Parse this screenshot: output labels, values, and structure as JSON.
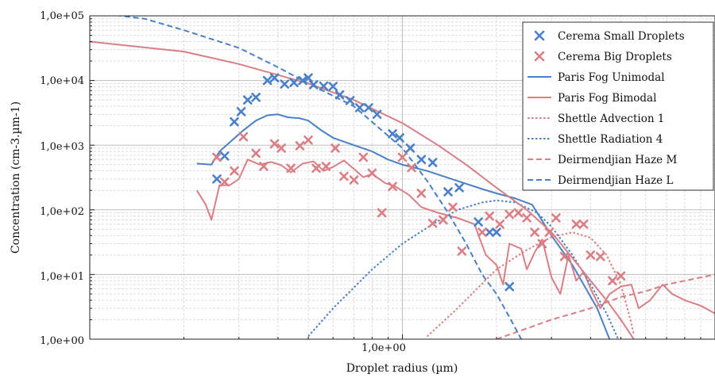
{
  "chart_data": {
    "type": "scatter",
    "xlabel": "Droplet radius (µm)",
    "ylabel": "Concentration (cm-3.µm-1)",
    "x_scale": "log",
    "y_scale": "log",
    "xlim": [
      0.1,
      10.0
    ],
    "ylim": [
      1,
      100000
    ],
    "grid": true,
    "legend_position": "top-right",
    "x_tick_labels": [
      {
        "value": 1.0,
        "label": "1,0e+00"
      }
    ],
    "y_tick_labels": [
      {
        "value": 100000,
        "label": "1,0e+05"
      },
      {
        "value": 10000,
        "label": "1,0e+04"
      },
      {
        "value": 1000,
        "label": "1,0e+03"
      },
      {
        "value": 100,
        "label": "1,0e+02"
      },
      {
        "value": 10,
        "label": "1,0e+01"
      },
      {
        "value": 1,
        "label": "1,0e+00"
      }
    ],
    "colors": {
      "blue": "#4a80c8",
      "red": "#d97f85"
    },
    "series": [
      {
        "name": "Cerema Small Droplets",
        "kind": "markers",
        "color": "#4a80c8",
        "points": [
          [
            0.255,
            300
          ],
          [
            0.27,
            680
          ],
          [
            0.29,
            2300
          ],
          [
            0.305,
            3300
          ],
          [
            0.32,
            5000
          ],
          [
            0.34,
            5500
          ],
          [
            0.37,
            10000
          ],
          [
            0.39,
            11000
          ],
          [
            0.42,
            8800
          ],
          [
            0.45,
            9300
          ],
          [
            0.48,
            10000
          ],
          [
            0.5,
            11000
          ],
          [
            0.52,
            8600
          ],
          [
            0.56,
            8200
          ],
          [
            0.6,
            8100
          ],
          [
            0.63,
            6000
          ],
          [
            0.68,
            4900
          ],
          [
            0.73,
            3800
          ],
          [
            0.78,
            3800
          ],
          [
            0.83,
            3000
          ],
          [
            0.93,
            1500
          ],
          [
            0.98,
            1300
          ],
          [
            1.06,
            900
          ],
          [
            1.15,
            600
          ],
          [
            1.25,
            540
          ],
          [
            1.4,
            190
          ],
          [
            1.52,
            220
          ],
          [
            1.75,
            65
          ],
          [
            1.9,
            45
          ],
          [
            2.0,
            45
          ],
          [
            2.2,
            6.5
          ]
        ]
      },
      {
        "name": "Cerema Big Droplets",
        "kind": "markers",
        "color": "#d97f85",
        "points": [
          [
            0.255,
            650
          ],
          [
            0.27,
            270
          ],
          [
            0.29,
            400
          ],
          [
            0.31,
            1350
          ],
          [
            0.34,
            750
          ],
          [
            0.36,
            470
          ],
          [
            0.39,
            1050
          ],
          [
            0.41,
            900
          ],
          [
            0.44,
            440
          ],
          [
            0.47,
            980
          ],
          [
            0.5,
            1200
          ],
          [
            0.53,
            440
          ],
          [
            0.57,
            470
          ],
          [
            0.61,
            900
          ],
          [
            0.65,
            330
          ],
          [
            0.7,
            290
          ],
          [
            0.75,
            650
          ],
          [
            0.8,
            370
          ],
          [
            0.86,
            90
          ],
          [
            0.93,
            230
          ],
          [
            1.0,
            650
          ],
          [
            1.07,
            450
          ],
          [
            1.15,
            180
          ],
          [
            1.25,
            62
          ],
          [
            1.35,
            70
          ],
          [
            1.45,
            110
          ],
          [
            1.55,
            23
          ],
          [
            1.8,
            45
          ],
          [
            1.9,
            80
          ],
          [
            2.05,
            60
          ],
          [
            2.2,
            85
          ],
          [
            2.35,
            90
          ],
          [
            2.5,
            75
          ],
          [
            2.65,
            45
          ],
          [
            2.8,
            30
          ],
          [
            2.95,
            45
          ],
          [
            3.1,
            75
          ],
          [
            3.3,
            19
          ],
          [
            3.6,
            60
          ],
          [
            3.8,
            60
          ],
          [
            4.0,
            20
          ],
          [
            4.3,
            19
          ],
          [
            4.7,
            8
          ],
          [
            5.0,
            9.5
          ]
        ]
      },
      {
        "name": "Paris Fog Unimodal",
        "kind": "line",
        "color": "#4a80c8",
        "dash": "solid",
        "points": [
          [
            0.22,
            520
          ],
          [
            0.245,
            500
          ],
          [
            0.26,
            800
          ],
          [
            0.28,
            1100
          ],
          [
            0.31,
            1700
          ],
          [
            0.34,
            2400
          ],
          [
            0.37,
            2900
          ],
          [
            0.4,
            3000
          ],
          [
            0.43,
            2700
          ],
          [
            0.47,
            2600
          ],
          [
            0.5,
            2400
          ],
          [
            0.55,
            1700
          ],
          [
            0.6,
            1300
          ],
          [
            0.7,
            1000
          ],
          [
            0.8,
            800
          ],
          [
            0.9,
            600
          ],
          [
            1.0,
            500
          ],
          [
            1.2,
            400
          ],
          [
            1.5,
            280
          ],
          [
            1.8,
            210
          ],
          [
            2.0,
            180
          ],
          [
            2.3,
            150
          ],
          [
            2.6,
            120
          ],
          [
            3.0,
            40
          ],
          [
            3.5,
            14
          ],
          [
            3.8,
            7
          ],
          [
            4.2,
            3
          ],
          [
            4.6,
            1
          ]
        ]
      },
      {
        "name": "Paris Fog Bimodal",
        "kind": "line",
        "color": "#d97f85",
        "dash": "solid",
        "points": [
          [
            0.22,
            200
          ],
          [
            0.235,
            120
          ],
          [
            0.245,
            70
          ],
          [
            0.26,
            240
          ],
          [
            0.28,
            240
          ],
          [
            0.3,
            300
          ],
          [
            0.32,
            600
          ],
          [
            0.35,
            500
          ],
          [
            0.38,
            550
          ],
          [
            0.41,
            490
          ],
          [
            0.44,
            380
          ],
          [
            0.48,
            520
          ],
          [
            0.52,
            560
          ],
          [
            0.56,
            400
          ],
          [
            0.6,
            460
          ],
          [
            0.65,
            580
          ],
          [
            0.7,
            430
          ],
          [
            0.75,
            320
          ],
          [
            0.8,
            360
          ],
          [
            0.88,
            260
          ],
          [
            0.95,
            230
          ],
          [
            1.05,
            170
          ],
          [
            1.15,
            110
          ],
          [
            1.3,
            90
          ],
          [
            1.5,
            75
          ],
          [
            1.7,
            60
          ],
          [
            1.85,
            20
          ],
          [
            2.0,
            14
          ],
          [
            2.1,
            7
          ],
          [
            2.2,
            30
          ],
          [
            2.4,
            25
          ],
          [
            2.5,
            12
          ],
          [
            2.65,
            22
          ],
          [
            2.8,
            35
          ],
          [
            3.0,
            9
          ],
          [
            3.2,
            5
          ],
          [
            3.4,
            20
          ],
          [
            3.6,
            8
          ],
          [
            3.8,
            11
          ],
          [
            4.0,
            6
          ],
          [
            4.3,
            3
          ],
          [
            4.6,
            5
          ],
          [
            5.0,
            6.5
          ],
          [
            5.4,
            7
          ],
          [
            5.7,
            3
          ],
          [
            6.2,
            4
          ],
          [
            6.8,
            7
          ],
          [
            7.3,
            5
          ],
          [
            8.0,
            4
          ],
          [
            9.0,
            3.3
          ],
          [
            10.0,
            2.5
          ]
        ]
      },
      {
        "name": "Shettle Advection 1",
        "kind": "line",
        "color": "#d97f85",
        "dash": "dotted",
        "points": [
          [
            1.2,
            1.1
          ],
          [
            1.5,
            3
          ],
          [
            2.0,
            12
          ],
          [
            2.5,
            24
          ],
          [
            3.0,
            38
          ],
          [
            3.5,
            45
          ],
          [
            4.0,
            37
          ],
          [
            4.5,
            20
          ],
          [
            5.0,
            7
          ],
          [
            5.3,
            2.5
          ],
          [
            5.5,
            1.2
          ]
        ]
      },
      {
        "name": "Shettle Radiation 4",
        "kind": "line",
        "color": "#4a80c8",
        "dash": "dotted",
        "points": [
          [
            0.5,
            1.1
          ],
          [
            0.6,
            3
          ],
          [
            0.8,
            12
          ],
          [
            1.0,
            30
          ],
          [
            1.25,
            60
          ],
          [
            1.5,
            100
          ],
          [
            1.8,
            130
          ],
          [
            2.0,
            140
          ],
          [
            2.3,
            130
          ],
          [
            2.7,
            90
          ],
          [
            3.0,
            55
          ],
          [
            3.5,
            20
          ],
          [
            4.0,
            7
          ],
          [
            4.5,
            2.5
          ],
          [
            4.9,
            1
          ]
        ]
      },
      {
        "name": "Deirmendjian Haze M",
        "kind": "line",
        "color": "#d97f85",
        "dash": "dashed",
        "points": [
          [
            2.0,
            1
          ],
          [
            3.0,
            2
          ],
          [
            4.0,
            3
          ],
          [
            5.0,
            4.5
          ],
          [
            6.0,
            5.5
          ],
          [
            7.0,
            7
          ],
          [
            8.0,
            8
          ],
          [
            9.0,
            9
          ],
          [
            10.0,
            10
          ]
        ]
      },
      {
        "name": "Deirmendjian Haze L",
        "kind": "line",
        "color": "#4a80c8",
        "dash": "dashed",
        "points": [
          [
            0.1,
            115000
          ],
          [
            0.15,
            90000
          ],
          [
            0.2,
            60000
          ],
          [
            0.3,
            32000
          ],
          [
            0.4,
            16000
          ],
          [
            0.5,
            9000
          ],
          [
            0.7,
            4000
          ],
          [
            1.0,
            900
          ],
          [
            1.2,
            280
          ],
          [
            1.4,
            90
          ],
          [
            1.6,
            30
          ],
          [
            1.8,
            10
          ],
          [
            2.0,
            5
          ],
          [
            2.2,
            2.2
          ],
          [
            2.4,
            1
          ]
        ]
      },
      {
        "name": "",
        "kind": "line",
        "color": "#d97f85",
        "dash": "solid",
        "points": [
          [
            0.1,
            40000
          ],
          [
            0.2,
            28000
          ],
          [
            0.3,
            18000
          ],
          [
            0.5,
            9000
          ],
          [
            0.7,
            5000
          ],
          [
            1.0,
            2200
          ],
          [
            1.3,
            1000
          ],
          [
            1.6,
            500
          ],
          [
            2.0,
            220
          ],
          [
            2.5,
            100
          ],
          [
            3.0,
            45
          ],
          [
            3.5,
            18
          ],
          [
            4.0,
            8
          ],
          [
            4.5,
            4
          ],
          [
            5.0,
            2
          ],
          [
            5.5,
            1
          ]
        ]
      }
    ]
  }
}
